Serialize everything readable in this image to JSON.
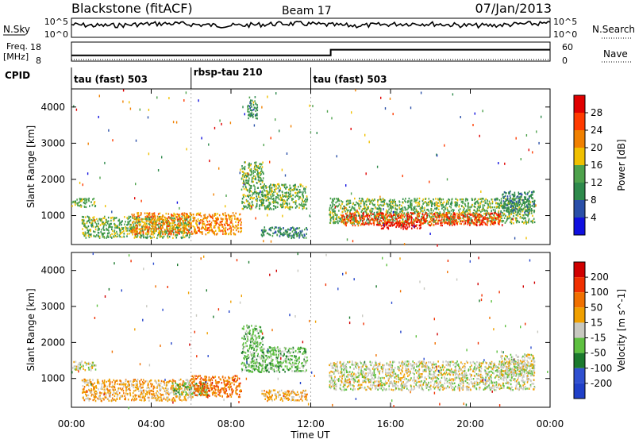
{
  "header": {
    "station": "Blackstone (fitACF)",
    "beam": "Beam 17",
    "date": "07/Jan/2013"
  },
  "aux_panels": {
    "nsky_label": "N.Sky",
    "nsky_ticks": [
      "10^5",
      "10^0"
    ],
    "nsearch_label": "N.Search",
    "nsearch_ticks": [
      "10^5",
      "10^0"
    ],
    "freq_label_1": "Freq.",
    "freq_label_2": "[MHz]",
    "freq_ticks": [
      "18",
      "8"
    ],
    "nave_label": "Nave",
    "nave_ticks": [
      "60",
      "0"
    ],
    "cpid_label": "CPID"
  },
  "cpid_segments": [
    {
      "label": "tau (fast) 503",
      "start_hr": 0,
      "end_hr": 6
    },
    {
      "label": "rbsp-tau 210",
      "start_hr": 6,
      "end_hr": 12
    },
    {
      "label": "tau (fast) 503",
      "start_hr": 12,
      "end_hr": 24
    }
  ],
  "colors": {
    "power_scale": [
      "#1010e0",
      "#2a4fa8",
      "#2e8a4c",
      "#4ea24c",
      "#f0c000",
      "#f08000",
      "#ff3b00",
      "#e00000"
    ],
    "velocity_scale": [
      "#2040c8",
      "#3050d0",
      "#1c7a2e",
      "#5ec040",
      "#c8c8c0",
      "#f0a000",
      "#f07000",
      "#f03000",
      "#d00000"
    ]
  },
  "chart_data": [
    {
      "type": "line",
      "title": "N.Sky / N.Search",
      "x_hours": [
        0,
        1,
        2,
        3,
        4,
        5,
        6,
        7,
        8,
        9,
        10,
        11,
        12,
        13,
        14,
        15,
        16,
        17,
        18,
        19,
        20,
        21,
        22,
        23,
        24
      ],
      "ylabel_left": "N.Sky",
      "ylabel_right": "N.Search",
      "y_ticks": [
        "10^5",
        "10^0"
      ]
    },
    {
      "type": "line",
      "title": "Freq. / Nave",
      "ylabel_left": "Freq. [MHz]",
      "ylabel_right": "Nave",
      "left_ticks": [
        "18",
        "8"
      ],
      "right_ticks": [
        "60",
        "0"
      ],
      "freq_steps": [
        {
          "start_hr": 0,
          "end_hr": 13,
          "value": 11
        },
        {
          "start_hr": 13,
          "end_hr": 24,
          "value": 14
        }
      ]
    },
    {
      "type": "heatmap",
      "title": "Power",
      "xlabel": "Time UT",
      "ylabel": "Slant Range [km]",
      "x_tick_labels": [
        "00:00",
        "04:00",
        "08:00",
        "12:00",
        "16:00",
        "20:00",
        "00:00"
      ],
      "x_ticks_hr": [
        0,
        4,
        8,
        12,
        16,
        20,
        24
      ],
      "y_ticks": [
        1000,
        2000,
        3000,
        4000
      ],
      "ylim": [
        200,
        4500
      ],
      "colorbar_label": "Power [dB]",
      "colorbar_ticks": [
        "28",
        "24",
        "20",
        "16",
        "12",
        "8",
        "4"
      ],
      "regions": [
        {
          "t0": 0.0,
          "t1": 1.2,
          "r0": 1250,
          "r1": 1500,
          "level": 3
        },
        {
          "t0": 0.5,
          "t1": 6.0,
          "r0": 400,
          "r1": 1000,
          "level": 3
        },
        {
          "t0": 3.0,
          "t1": 8.5,
          "r0": 500,
          "r1": 1100,
          "level": 5
        },
        {
          "t0": 8.5,
          "t1": 9.6,
          "r0": 1200,
          "r1": 2500,
          "level": 3
        },
        {
          "t0": 9.5,
          "t1": 11.8,
          "r0": 1200,
          "r1": 1900,
          "level": 3
        },
        {
          "t0": 9.5,
          "t1": 11.8,
          "r0": 400,
          "r1": 700,
          "level": 2
        },
        {
          "t0": 8.8,
          "t1": 9.3,
          "r0": 3700,
          "r1": 4300,
          "level": 2
        },
        {
          "t0": 12.9,
          "t1": 23.2,
          "r0": 800,
          "r1": 1500,
          "level": 3
        },
        {
          "t0": 13.5,
          "t1": 21.5,
          "r0": 750,
          "r1": 1100,
          "level": 6
        },
        {
          "t0": 15.5,
          "t1": 17.5,
          "r0": 650,
          "r1": 850,
          "level": 7
        },
        {
          "t0": 21.5,
          "t1": 23.2,
          "r0": 1100,
          "r1": 1700,
          "level": 2
        }
      ]
    },
    {
      "type": "heatmap",
      "title": "Velocity",
      "xlabel": "Time UT",
      "ylabel": "Slant Range [km]",
      "x_tick_labels": [
        "00:00",
        "04:00",
        "08:00",
        "12:00",
        "16:00",
        "20:00",
        "00:00"
      ],
      "x_ticks_hr": [
        0,
        4,
        8,
        12,
        16,
        20,
        24
      ],
      "y_ticks": [
        1000,
        2000,
        3000,
        4000
      ],
      "ylim": [
        200,
        4500
      ],
      "colorbar_label": "Velocity [m s^-1]",
      "colorbar_ticks": [
        "200",
        "100",
        "50",
        "15",
        "-15",
        "-50",
        "-100",
        "-200"
      ],
      "regions": [
        {
          "t0": 0.0,
          "t1": 1.2,
          "r0": 1250,
          "r1": 1500,
          "level": 4
        },
        {
          "t0": 0.5,
          "t1": 6.0,
          "r0": 400,
          "r1": 1000,
          "level": 5
        },
        {
          "t0": 5.0,
          "t1": 6.8,
          "r0": 550,
          "r1": 900,
          "level": 3
        },
        {
          "t0": 6.0,
          "t1": 8.5,
          "r0": 500,
          "r1": 1100,
          "level": 6
        },
        {
          "t0": 8.5,
          "t1": 9.6,
          "r0": 1200,
          "r1": 2500,
          "level": 3
        },
        {
          "t0": 9.5,
          "t1": 11.8,
          "r0": 1200,
          "r1": 1900,
          "level": 3
        },
        {
          "t0": 9.5,
          "t1": 11.8,
          "r0": 400,
          "r1": 700,
          "level": 5
        },
        {
          "t0": 12.9,
          "t1": 23.2,
          "r0": 700,
          "r1": 1500,
          "level": 4
        },
        {
          "t0": 21.5,
          "t1": 23.2,
          "r0": 1100,
          "r1": 1700,
          "level": 4
        }
      ]
    }
  ]
}
